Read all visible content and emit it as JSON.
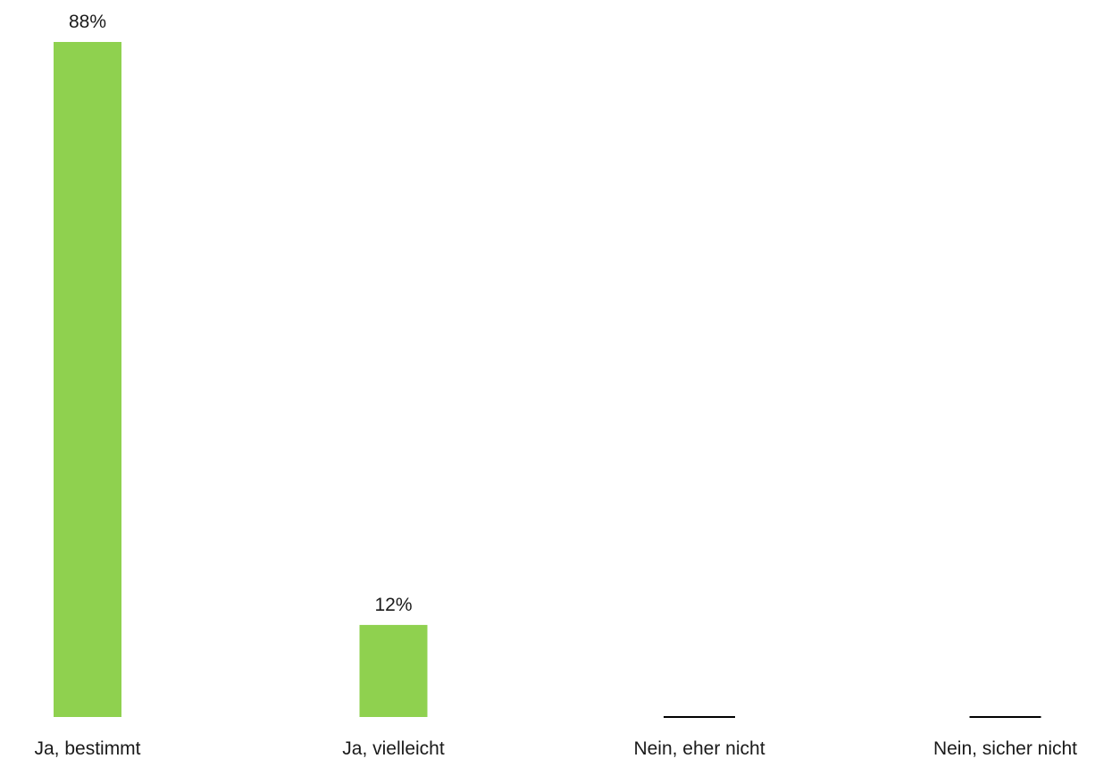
{
  "chart_data": {
    "type": "bar",
    "categories": [
      "Ja, bestimmt",
      "Ja, vielleicht",
      "Nein, eher nicht",
      "Nein, sicher nicht"
    ],
    "values": [
      88,
      12,
      0,
      0
    ],
    "value_labels": [
      "88%",
      "12%",
      "",
      ""
    ],
    "unit": "%",
    "title": "",
    "xlabel": "",
    "ylabel": "",
    "ylim": [
      0,
      88
    ],
    "grid": false,
    "legend": "none",
    "bar_color": "#8fd14f",
    "zero_marker_color": "#000000",
    "label_color": "#1a1a1a"
  }
}
